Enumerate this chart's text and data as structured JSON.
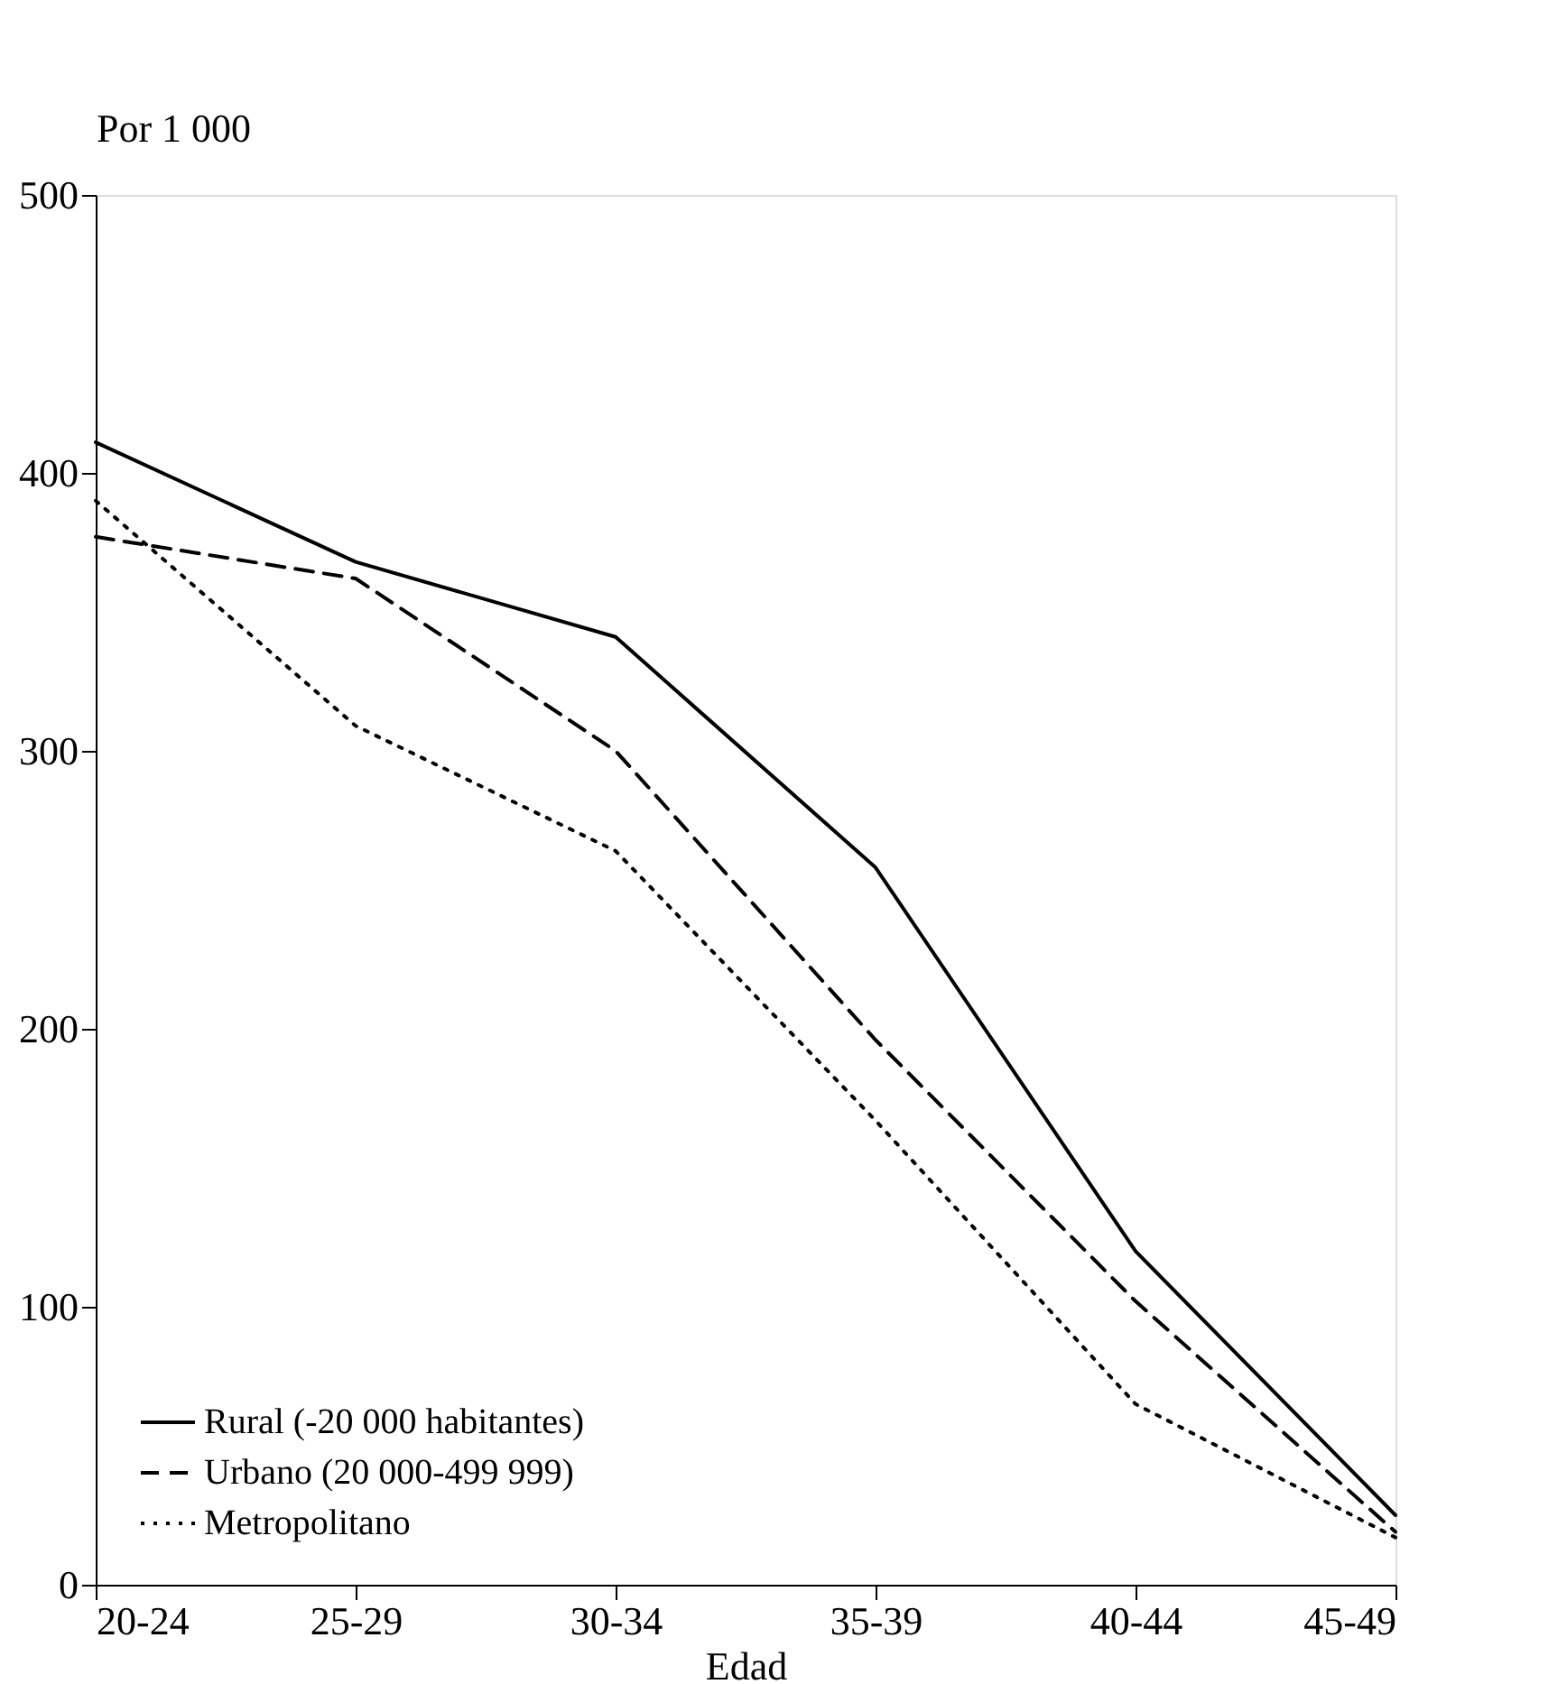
{
  "chart_data": {
    "type": "line",
    "ylabel": "Por 1 000",
    "xlabel": "Edad",
    "categories": [
      "20-24",
      "25-29",
      "30-34",
      "35-39",
      "40-44",
      "45-49"
    ],
    "ylim": [
      0,
      500
    ],
    "yticks": [
      0,
      100,
      200,
      300,
      400,
      500
    ],
    "grid": false,
    "legend": "bottom left",
    "marker": "none",
    "series": [
      {
        "name": "Rural (-20 000 habitantes)",
        "color": "#000000",
        "line_style": "solid",
        "values": [
          411,
          368,
          341,
          258,
          120,
          25
        ]
      },
      {
        "name": "Urbano (20 000-499 999)",
        "color": "#000000",
        "line_style": "dashed",
        "values": [
          377,
          362,
          300,
          196,
          102,
          19
        ]
      },
      {
        "name": "Metropolitano",
        "color": "#000000",
        "line_style": "dotted",
        "values": [
          390,
          309,
          264,
          167,
          65,
          17
        ]
      }
    ]
  }
}
